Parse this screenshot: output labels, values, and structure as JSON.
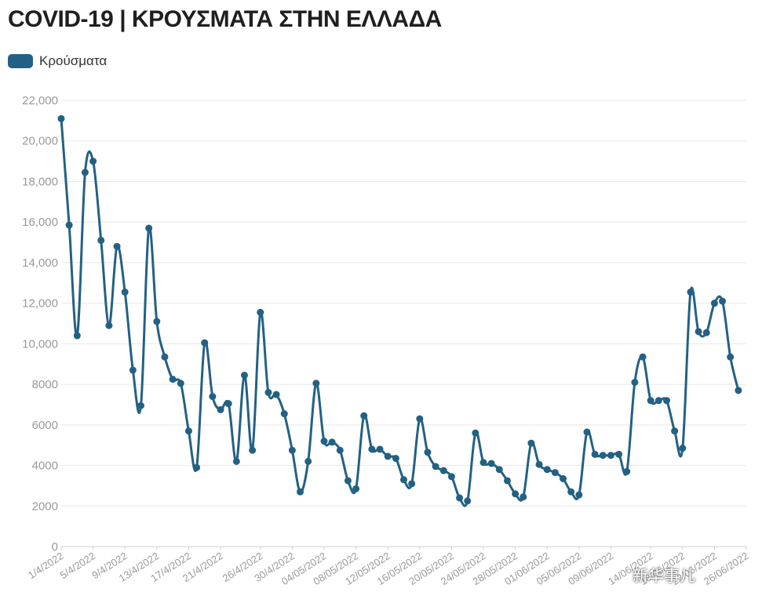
{
  "title": "COVID-19 | ΚΡΟΥΣΜΑΤΑ ΣΤΗΝ ΕΛΛΑΔΑ",
  "watermark_text": "新华事儿",
  "chart_data": {
    "type": "line",
    "title": "COVID-19 | ΚΡΟΥΣΜΑΤΑ ΣΤΗΝ ΕΛΛΑΔΑ",
    "xlabel": "",
    "ylabel": "",
    "ylim": [
      0,
      22000
    ],
    "yticks": [
      0,
      2000,
      4000,
      6000,
      8000,
      10000,
      12000,
      14000,
      16000,
      18000,
      20000,
      22000
    ],
    "ytick_labels": [
      "0",
      "2000",
      "4000",
      "6000",
      "8000",
      "10,000",
      "12,000",
      "14,000",
      "16,000",
      "18,000",
      "20,000",
      "22,000"
    ],
    "x_start": "2022-04-01",
    "x_end": "2022-06-26",
    "xticks": [
      {
        "date": "2022-04-01",
        "label": "1/4/2022"
      },
      {
        "date": "2022-04-05",
        "label": "5/4/2022"
      },
      {
        "date": "2022-04-09",
        "label": "9/4/2022"
      },
      {
        "date": "2022-04-13",
        "label": "13/4/2022"
      },
      {
        "date": "2022-04-17",
        "label": "17/4/2022"
      },
      {
        "date": "2022-04-21",
        "label": "21/4/2022"
      },
      {
        "date": "2022-04-26",
        "label": "26/4/2022"
      },
      {
        "date": "2022-04-30",
        "label": "30/4/2022"
      },
      {
        "date": "2022-05-04",
        "label": "04/05/2022"
      },
      {
        "date": "2022-05-08",
        "label": "08/05/2022"
      },
      {
        "date": "2022-05-12",
        "label": "12/05/2022"
      },
      {
        "date": "2022-05-16",
        "label": "16/05/2022"
      },
      {
        "date": "2022-05-20",
        "label": "20/05/2022"
      },
      {
        "date": "2022-05-24",
        "label": "24/05/2022"
      },
      {
        "date": "2022-05-28",
        "label": "28/05/2022"
      },
      {
        "date": "2022-06-01",
        "label": "01/06/2022"
      },
      {
        "date": "2022-06-05",
        "label": "05/06/2022"
      },
      {
        "date": "2022-06-09",
        "label": "09/06/2022"
      },
      {
        "date": "2022-06-14",
        "label": "14/06/2022"
      },
      {
        "date": "2022-06-18",
        "label": "18/06/2022"
      },
      {
        "date": "2022-06-22",
        "label": "22/06/2022"
      },
      {
        "date": "2022-06-26",
        "label": "26/06/2022"
      }
    ],
    "grid": true,
    "legend": "top-left",
    "series": [
      {
        "name": "Κρούσματα",
        "color": "#236184",
        "values": [
          21100,
          15850,
          10400,
          18450,
          19000,
          15100,
          10900,
          14800,
          12550,
          8700,
          6950,
          15700,
          11100,
          9350,
          8250,
          8050,
          5700,
          3900,
          10050,
          7400,
          6750,
          7050,
          4200,
          8450,
          4750,
          11550,
          7600,
          7500,
          6550,
          4750,
          2700,
          4200,
          8050,
          5200,
          5150,
          4750,
          3250,
          2850,
          6450,
          4800,
          4800,
          4450,
          4350,
          3300,
          3100,
          6300,
          4650,
          3950,
          3750,
          3450,
          2400,
          2250,
          5600,
          4150,
          4100,
          3800,
          3250,
          2600,
          2450,
          5100,
          4050,
          3800,
          3650,
          3350,
          2700,
          2550,
          5650,
          4550,
          4500,
          4500,
          4550,
          3700,
          8100,
          9350,
          7200,
          7200,
          7200,
          5700,
          4850,
          12550,
          10600,
          10550,
          12000,
          12100,
          9350,
          7700
        ]
      }
    ]
  }
}
